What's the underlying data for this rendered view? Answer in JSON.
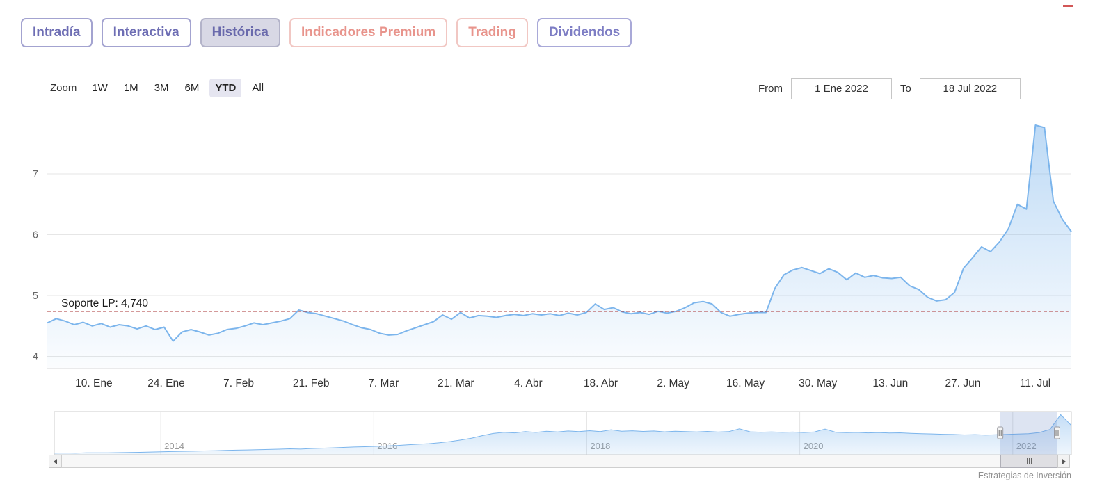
{
  "page": {
    "credit": "Estrategias de Inversión"
  },
  "tabs": [
    {
      "label": "Intradía",
      "text_color": "#6e6eb4",
      "border_color": "#a3a3d0",
      "background": "#ffffff",
      "active": false
    },
    {
      "label": "Interactiva",
      "text_color": "#6e6eb4",
      "border_color": "#a3a3d0",
      "background": "#ffffff",
      "active": false
    },
    {
      "label": "Histórica",
      "text_color": "#6a6aac",
      "border_color": "#b3b3c9",
      "background": "#d8d8e5",
      "active": true
    },
    {
      "label": "Indicadores Premium",
      "text_color": "#e8948c",
      "border_color": "#f1c7c3",
      "background": "#ffffff",
      "active": false
    },
    {
      "label": "Trading",
      "text_color": "#e8948c",
      "border_color": "#f1c7c3",
      "background": "#ffffff",
      "active": false
    },
    {
      "label": "Dividendos",
      "text_color": "#7d7dc4",
      "border_color": "#a9a9d8",
      "background": "#ffffff",
      "active": false
    }
  ],
  "toolbar": {
    "zoom_label": "Zoom",
    "zoom_options": [
      {
        "label": "1W",
        "active": false
      },
      {
        "label": "1M",
        "active": false
      },
      {
        "label": "3M",
        "active": false
      },
      {
        "label": "6M",
        "active": false
      },
      {
        "label": "YTD",
        "active": true
      },
      {
        "label": "All",
        "active": false
      }
    ],
    "from_label": "From",
    "from_value": "1 Ene 2022",
    "to_label": "To",
    "to_value": "18 Jul 2022"
  },
  "chart_data": {
    "type": "area",
    "title": "",
    "main": {
      "line_color": "#7cb5ec",
      "grid": true,
      "ylim": [
        3.8,
        7.8
      ],
      "yticks": [
        4,
        5,
        6,
        7
      ],
      "x_span_days": 198,
      "xticks": [
        {
          "label": "10. Ene",
          "day": 9
        },
        {
          "label": "24. Ene",
          "day": 23
        },
        {
          "label": "7. Feb",
          "day": 37
        },
        {
          "label": "21. Feb",
          "day": 51
        },
        {
          "label": "7. Mar",
          "day": 65
        },
        {
          "label": "21. Mar",
          "day": 79
        },
        {
          "label": "4. Abr",
          "day": 93
        },
        {
          "label": "18. Abr",
          "day": 107
        },
        {
          "label": "2. May",
          "day": 121
        },
        {
          "label": "16. May",
          "day": 135
        },
        {
          "label": "30. May",
          "day": 149
        },
        {
          "label": "13. Jun",
          "day": 163
        },
        {
          "label": "27. Jun",
          "day": 177
        },
        {
          "label": "11. Jul",
          "day": 191
        }
      ],
      "values": [
        4.55,
        4.62,
        4.58,
        4.52,
        4.56,
        4.5,
        4.54,
        4.48,
        4.52,
        4.5,
        4.45,
        4.5,
        4.44,
        4.48,
        4.25,
        4.4,
        4.44,
        4.4,
        4.35,
        4.38,
        4.44,
        4.46,
        4.5,
        4.55,
        4.52,
        4.55,
        4.58,
        4.62,
        4.76,
        4.72,
        4.7,
        4.66,
        4.62,
        4.58,
        4.52,
        4.47,
        4.44,
        4.38,
        4.35,
        4.36,
        4.42,
        4.47,
        4.52,
        4.57,
        4.68,
        4.61,
        4.72,
        4.63,
        4.67,
        4.66,
        4.64,
        4.67,
        4.69,
        4.67,
        4.7,
        4.68,
        4.7,
        4.67,
        4.71,
        4.68,
        4.72,
        4.86,
        4.77,
        4.8,
        4.73,
        4.7,
        4.72,
        4.69,
        4.74,
        4.71,
        4.74,
        4.8,
        4.88,
        4.9,
        4.86,
        4.72,
        4.66,
        4.69,
        4.71,
        4.72,
        4.72,
        5.12,
        5.34,
        5.42,
        5.46,
        5.41,
        5.36,
        5.44,
        5.38,
        5.26,
        5.37,
        5.3,
        5.33,
        5.29,
        5.28,
        5.3,
        5.16,
        5.1,
        4.97,
        4.91,
        4.93,
        5.05,
        5.45,
        5.62,
        5.8,
        5.72,
        5.88,
        6.1,
        6.5,
        6.42,
        7.8,
        7.76,
        6.55,
        6.25,
        6.05
      ],
      "plotline": {
        "value": 4.74,
        "label": "Soporte LP: 4,740",
        "color": "#aa3333"
      }
    },
    "navigator": {
      "line_color": "#7cb5ec",
      "ylim": [
        1.3,
        8.3
      ],
      "year_span": [
        2013.0,
        2022.55
      ],
      "year_ticks": [
        2014,
        2016,
        2018,
        2020,
        2022
      ],
      "values": [
        1.55,
        1.58,
        1.56,
        1.6,
        1.62,
        1.6,
        1.64,
        1.66,
        1.7,
        1.74,
        1.78,
        1.82,
        1.85,
        1.88,
        1.92,
        1.95,
        2.0,
        2.05,
        2.08,
        2.12,
        2.16,
        2.2,
        2.26,
        2.22,
        2.3,
        2.36,
        2.42,
        2.48,
        2.55,
        2.6,
        2.66,
        2.72,
        2.8,
        2.9,
        3.0,
        3.1,
        3.25,
        3.45,
        3.7,
        4.0,
        4.4,
        4.75,
        4.95,
        4.85,
        5.05,
        4.92,
        5.1,
        5.0,
        5.15,
        5.05,
        5.2,
        5.05,
        5.35,
        5.1,
        5.18,
        5.08,
        5.15,
        5.02,
        5.12,
        5.06,
        5.0,
        5.08,
        4.98,
        5.05,
        5.5,
        5.02,
        4.96,
        5.0,
        4.94,
        4.98,
        4.9,
        5.0,
        5.45,
        4.95,
        4.88,
        4.92,
        4.85,
        4.9,
        4.82,
        4.86,
        4.78,
        4.72,
        4.68,
        4.62,
        4.58,
        4.52,
        4.56,
        4.5,
        4.55,
        4.6,
        4.65,
        4.72,
        4.9,
        5.4,
        7.8,
        6.05
      ],
      "selection_frac": [
        0.93,
        0.986
      ],
      "mask_color": "rgba(102,133,194,0.22)"
    }
  }
}
